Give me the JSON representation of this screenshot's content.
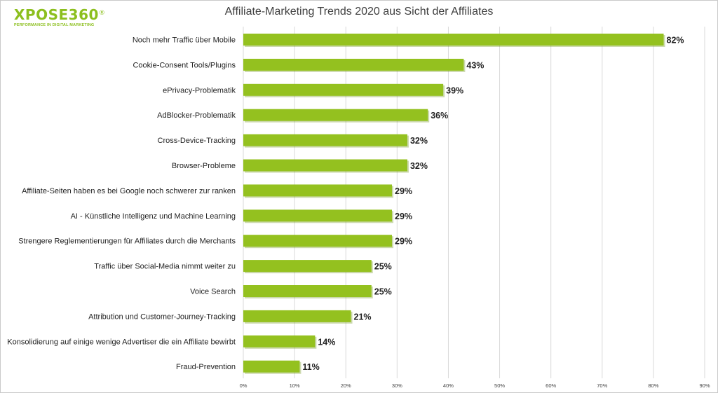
{
  "logo": {
    "name": "XPOSE360",
    "mark": "®",
    "tagline": "PERFORMANCE IN DIGITAL MARKETING"
  },
  "colors": {
    "bar": "#94c11f",
    "bar_shadow": "#6e9117",
    "grid": "#d9d9d9",
    "logo": "#8cbf1e"
  },
  "chart_data": {
    "type": "bar",
    "orientation": "horizontal",
    "title": "Affiliate-Marketing Trends 2020 aus Sicht der Affiliates",
    "categories": [
      "Noch mehr Traffic über Mobile",
      "Cookie-Consent Tools/Plugins",
      "ePrivacy-Problematik",
      "AdBlocker-Problematik",
      "Cross-Device-Tracking",
      "Browser-Probleme",
      "Affiliate-Seiten haben es bei Google noch schwerer zur ranken",
      "AI - Künstliche Intelligenz und Machine Learning",
      "Strengere Reglementierungen für Affiliates durch die Merchants",
      "Traffic über Social-Media nimmt weiter zu",
      "Voice Search",
      "Attribution und Customer-Journey-Tracking",
      "Konsolidierung auf einige wenige Advertiser die ein Affiliate bewirbt",
      "Fraud-Prevention"
    ],
    "values": [
      82,
      43,
      39,
      36,
      32,
      32,
      29,
      29,
      29,
      25,
      25,
      21,
      14,
      11
    ],
    "value_labels": [
      "82%",
      "43%",
      "39%",
      "36%",
      "32%",
      "32%",
      "29%",
      "29%",
      "29%",
      "25%",
      "25%",
      "21%",
      "14%",
      "11%"
    ],
    "x_ticks": [
      0,
      10,
      20,
      30,
      40,
      50,
      60,
      70,
      80,
      90
    ],
    "x_tick_labels": [
      "0%",
      "10%",
      "20%",
      "30%",
      "40%",
      "50%",
      "60%",
      "70%",
      "80%",
      "90%"
    ],
    "xlim": [
      0,
      90
    ],
    "grid": true,
    "legend": "none"
  }
}
